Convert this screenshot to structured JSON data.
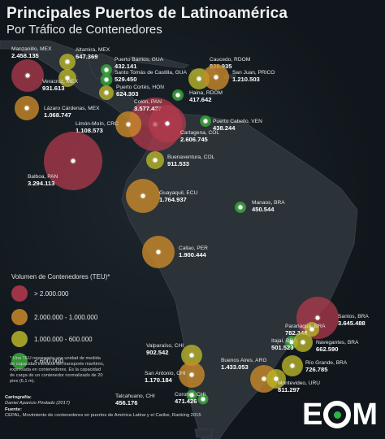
{
  "title": "Principales Puertos de Latinoamérica",
  "subtitle": "Por Tráfico de Contenedores",
  "colors": {
    "red": "#b73a4e",
    "orange": "#c9892a",
    "yellow": "#b8b42a",
    "green": "#3aa83a"
  },
  "ports": [
    {
      "name": "Manzanillo, MEX",
      "value": "2.458.135",
      "cat": "red"
    },
    {
      "name": "Altamira, MEX",
      "value": "647.369",
      "cat": "yellow"
    },
    {
      "name": "Veracruz, MEX",
      "value": "931.613",
      "cat": "yellow"
    },
    {
      "name": "Lázaro Cárdenas, MEX",
      "value": "1.068.747",
      "cat": "orange"
    },
    {
      "name": "Puerto Barrios, GUA",
      "value": "432.141",
      "cat": "green"
    },
    {
      "name": "Santo Tomás de Castilla, GUA",
      "value": "529.450",
      "cat": "green"
    },
    {
      "name": "Puerto Cortés, HON",
      "value": "624.303",
      "cat": "yellow"
    },
    {
      "name": "Caucedo, RDOM",
      "value": "826.935",
      "cat": "yellow"
    },
    {
      "name": "San Juan, PRICO",
      "value": "1.210.503",
      "cat": "orange"
    },
    {
      "name": "Haina, RDOM",
      "value": "417.642",
      "cat": "green"
    },
    {
      "name": "Colón, PAN",
      "value": "3.577.427",
      "cat": "red"
    },
    {
      "name": "Limón-Moín, CRC",
      "value": "1.108.573",
      "cat": "orange"
    },
    {
      "name": "Puerto Cabello, VEN",
      "value": "438.244",
      "cat": "green"
    },
    {
      "name": "Cartagena, COL",
      "value": "2.606.745",
      "cat": "red"
    },
    {
      "name": "Balboa, PAN",
      "value": "3.294.113",
      "cat": "red"
    },
    {
      "name": "Buenaventura, COL",
      "value": "911.533",
      "cat": "yellow"
    },
    {
      "name": "Guayaquil, ECU",
      "value": "1.764.937",
      "cat": "orange"
    },
    {
      "name": "Manaos, BRA",
      "value": "450.544",
      "cat": "green"
    },
    {
      "name": "Callao, PER",
      "value": "1.900.444",
      "cat": "orange"
    },
    {
      "name": "Santos, BRA",
      "value": "3.645.488",
      "cat": "red"
    },
    {
      "name": "Paranaguá, BRA",
      "value": "782.346",
      "cat": "yellow"
    },
    {
      "name": "Itajaí, BRA",
      "value": "501.523",
      "cat": "green"
    },
    {
      "name": "Navegantes, BRA",
      "value": "662.590",
      "cat": "yellow"
    },
    {
      "name": "Río Grande, BRA",
      "value": "726.785",
      "cat": "yellow"
    },
    {
      "name": "Valparaíso, CHI",
      "value": "902.542",
      "cat": "yellow"
    },
    {
      "name": "San Antonio, CHI",
      "value": "1.170.184",
      "cat": "orange"
    },
    {
      "name": "Buenos Aires, ARG",
      "value": "1.433.053",
      "cat": "orange"
    },
    {
      "name": "Montevideo, URU",
      "value": "811.297",
      "cat": "yellow"
    },
    {
      "name": "Talcahuano, CHI",
      "value": "456.176",
      "cat": "green"
    },
    {
      "name": "Coronel, CHI",
      "value": "471.426",
      "cat": "green"
    }
  ],
  "legend": {
    "title": "Volumen de Contenedores (TEU)*",
    "items": [
      {
        "label": "> 2.000.000",
        "cat": "red"
      },
      {
        "label": "2.000.000 - 1.000.000",
        "cat": "orange"
      },
      {
        "label": "1.000.000 - 600.000",
        "cat": "yellow"
      },
      {
        "label": "< 600.000",
        "cat": "green"
      }
    ]
  },
  "note": "* Una TEU representa una unidad de medida de capacidad inexacta del transporte marítimo, expresada en contenedores. Es la capacidad de carga de un contenedor normalizado de 20 pies (6,1 m).",
  "credits": {
    "cartography_label": "Cartografía:",
    "cartography": "Daniel Aparicio Pindado (2017)",
    "source_label": "Fuente:",
    "source": "CEPAL, Movimiento de contenedores en puertos de América Latina y el Caribe, Ranking 2015"
  },
  "logo": {
    "left": "E",
    "right": "M"
  }
}
